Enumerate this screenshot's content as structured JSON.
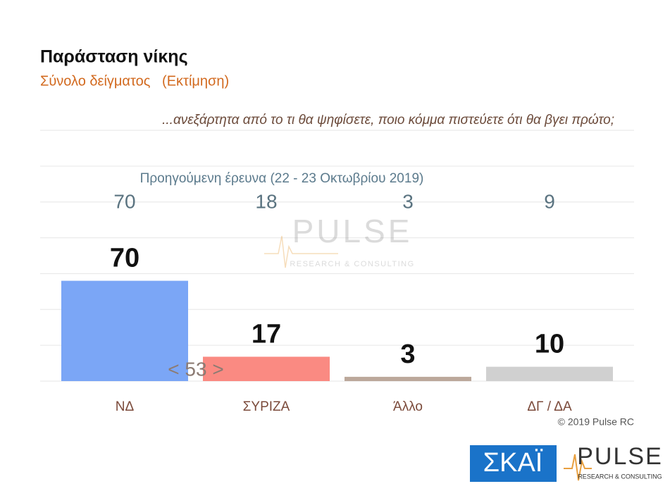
{
  "chart_data": {
    "type": "bar",
    "title": "Παράσταση νίκης",
    "subtitle": "Σύνολο δείγματος   (Εκτίμηση)",
    "question": "...ανεξάρτητα από το τι θα ψηφίσετε, ποιο κόμμα πιστεύετε ότι θα βγει πρώτο;",
    "previous_label": "Προηγούμενη έρευνα  (22 - 23  Οκτωβρίου  2019)",
    "previous_values": [
      70,
      18,
      3,
      9
    ],
    "categories": [
      "ΝΔ",
      "ΣΥΡΙΖΑ",
      "Άλλο",
      "ΔΓ / ΔΑ"
    ],
    "values": [
      70,
      17,
      3,
      10
    ],
    "colors": [
      "#7ba6f6",
      "#fa8a82",
      "#bca89b",
      "#d0d0d0"
    ],
    "annotation": "< 53 >",
    "ylim": [
      0,
      175
    ],
    "yticks": [
      0,
      25,
      50,
      75,
      100,
      125,
      150,
      175
    ],
    "grid": true,
    "copyright": "© 2019 Pulse RC"
  },
  "branding": {
    "broadcaster": "ΣΚΑΪ",
    "pollster": "PULSE",
    "pollster_sub": "RESEARCH & CONSULTING"
  }
}
